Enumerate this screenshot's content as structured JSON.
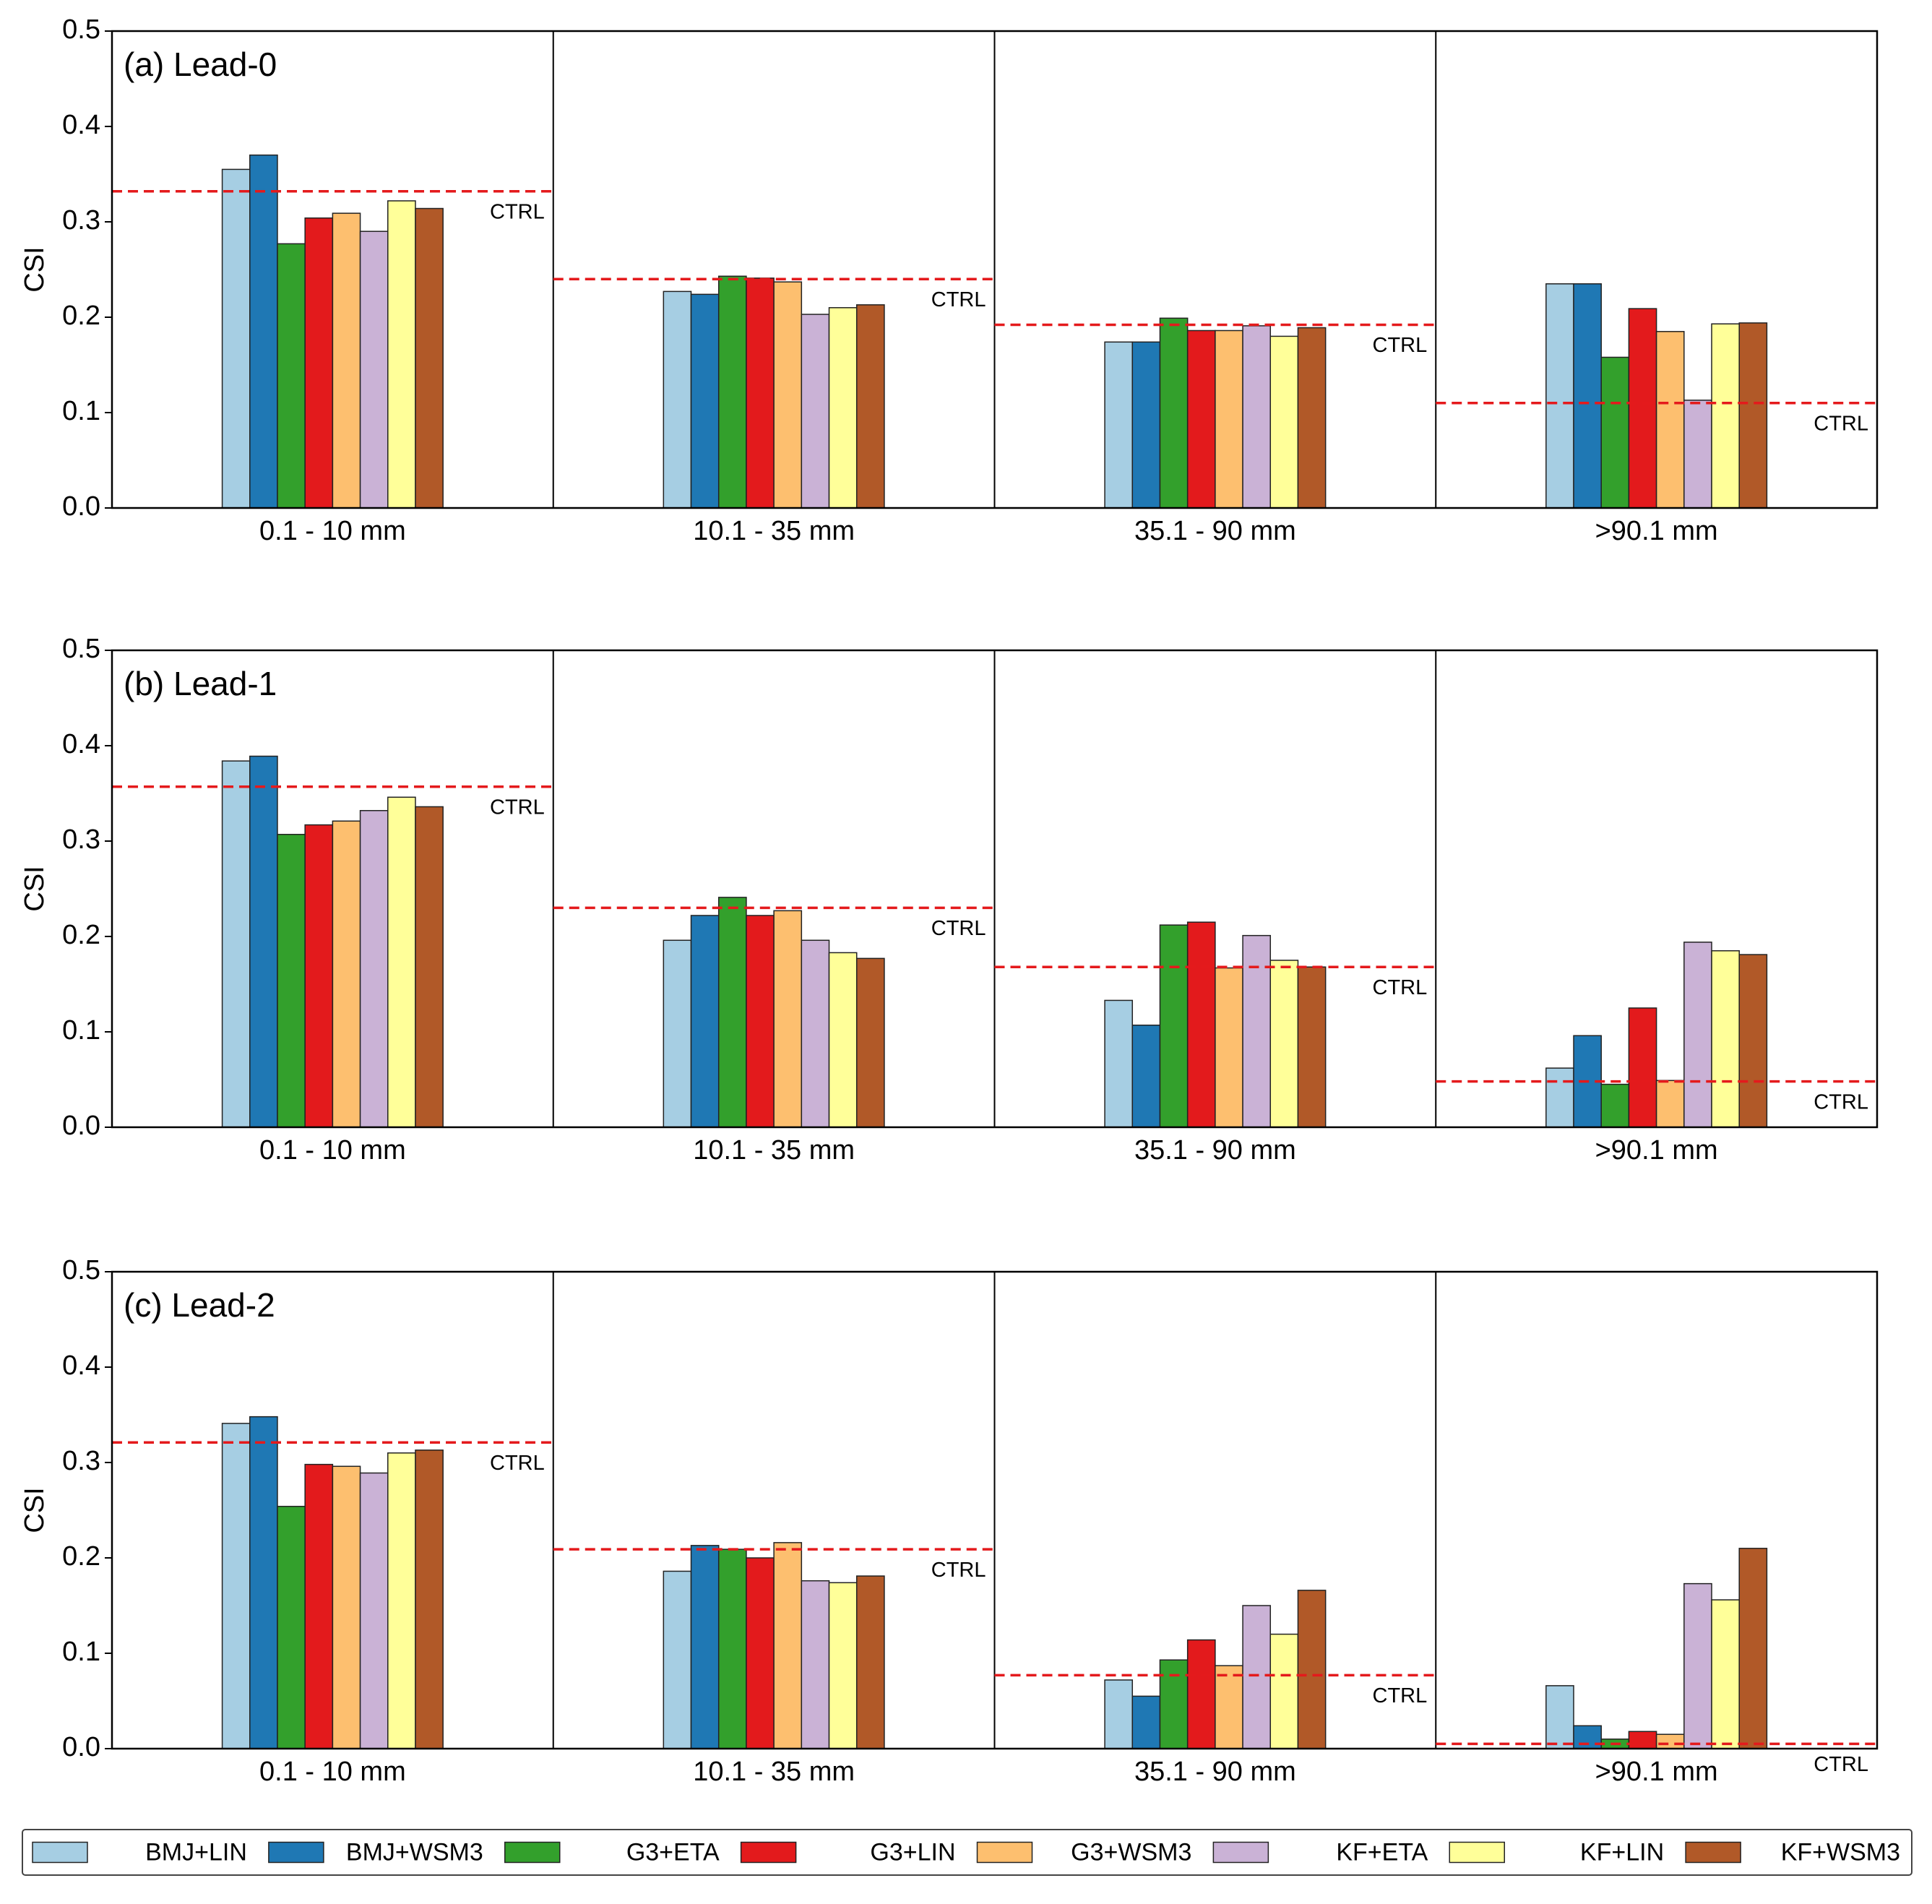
{
  "chart_data": [
    {
      "type": "bar",
      "title": "(a) Lead-0",
      "ylabel": "CSI",
      "categories": [
        "0.1 - 10 mm",
        "10.1 - 35 mm",
        "35.1 - 90 mm",
        ">90.1 mm"
      ],
      "ylim": [
        0,
        0.5
      ],
      "yticks": [
        {
          "value": 0,
          "label": "0.0"
        },
        0.1,
        0.2,
        0.3,
        0.4,
        0.5
      ],
      "series": [
        {
          "name": "BMJ+LIN",
          "color": "#a6cee3",
          "values": [
            0.355,
            0.227,
            0.174,
            0.235
          ]
        },
        {
          "name": "BMJ+WSM3",
          "color": "#1f78b4",
          "values": [
            0.37,
            0.224,
            0.174,
            0.235
          ]
        },
        {
          "name": "G3+ETA",
          "color": "#33a02c",
          "values": [
            0.277,
            0.243,
            0.199,
            0.158
          ]
        },
        {
          "name": "G3+LIN",
          "color": "#e31a1c",
          "values": [
            0.304,
            0.241,
            0.186,
            0.209
          ]
        },
        {
          "name": "G3+WSM3",
          "color": "#fdbf6f",
          "values": [
            0.309,
            0.237,
            0.186,
            0.185
          ]
        },
        {
          "name": "KF+ETA",
          "color": "#cab2d6",
          "values": [
            0.29,
            0.203,
            0.191,
            0.113
          ]
        },
        {
          "name": "KF+LIN",
          "color": "#ffff99",
          "values": [
            0.322,
            0.21,
            0.18,
            0.193
          ]
        },
        {
          "name": "KF+WSM3",
          "color": "#b15928",
          "values": [
            0.314,
            0.213,
            0.189,
            0.194
          ]
        }
      ],
      "reference": {
        "name": "CTRL",
        "color": "#e41a1c",
        "values": [
          0.332,
          0.24,
          0.192,
          0.11
        ]
      }
    },
    {
      "type": "bar",
      "title": "(b) Lead-1",
      "ylabel": "CSI",
      "categories": [
        "0.1 - 10 mm",
        "10.1 - 35 mm",
        "35.1 - 90 mm",
        ">90.1 mm"
      ],
      "ylim": [
        0,
        0.5
      ],
      "yticks": [
        {
          "value": 0,
          "label": "0.0"
        },
        0.1,
        0.2,
        0.3,
        0.4,
        0.5
      ],
      "series": [
        {
          "values": [
            0.384,
            0.196,
            0.133,
            0.062
          ]
        },
        {
          "values": [
            0.389,
            0.222,
            0.107,
            0.096
          ]
        },
        {
          "values": [
            0.307,
            0.241,
            0.212,
            0.045
          ]
        },
        {
          "values": [
            0.317,
            0.222,
            0.215,
            0.125
          ]
        },
        {
          "values": [
            0.321,
            0.227,
            0.167,
            0.049
          ]
        },
        {
          "values": [
            0.332,
            0.196,
            0.201,
            0.194
          ]
        },
        {
          "values": [
            0.346,
            0.183,
            0.175,
            0.185
          ]
        },
        {
          "values": [
            0.336,
            0.177,
            0.168,
            0.181
          ]
        }
      ],
      "reference": {
        "values": [
          0.357,
          0.23,
          0.168,
          0.048
        ]
      }
    },
    {
      "type": "bar",
      "title": "(c) Lead-2",
      "ylabel": "CSI",
      "categories": [
        "0.1 - 10 mm",
        "10.1 - 35 mm",
        "35.1 - 90 mm",
        ">90.1 mm"
      ],
      "ylim": [
        0,
        0.5
      ],
      "yticks": [
        {
          "value": 0,
          "label": "0.0"
        },
        0.1,
        0.2,
        0.3,
        0.4,
        0.5
      ],
      "series": [
        {
          "values": [
            0.341,
            0.186,
            0.072,
            0.066
          ]
        },
        {
          "values": [
            0.348,
            0.213,
            0.055,
            0.024
          ]
        },
        {
          "values": [
            0.254,
            0.209,
            0.093,
            0.01
          ]
        },
        {
          "values": [
            0.298,
            0.2,
            0.114,
            0.018
          ]
        },
        {
          "values": [
            0.296,
            0.216,
            0.087,
            0.015
          ]
        },
        {
          "values": [
            0.289,
            0.176,
            0.15,
            0.173
          ]
        },
        {
          "values": [
            0.31,
            0.174,
            0.12,
            0.156
          ]
        },
        {
          "values": [
            0.313,
            0.181,
            0.166,
            0.21
          ]
        }
      ],
      "reference": {
        "values": [
          0.321,
          0.209,
          0.077,
          0.005
        ]
      }
    }
  ]
}
